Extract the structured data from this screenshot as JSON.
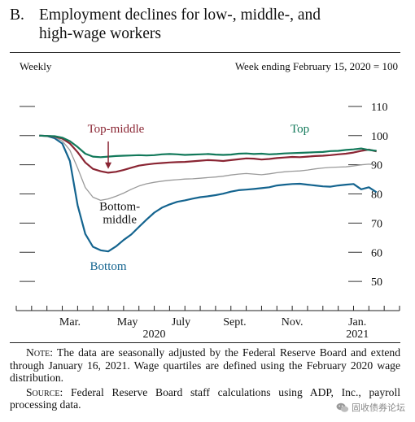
{
  "panel": {
    "letter": "B.",
    "title_line1": "Employment declines for low-, middle-, and",
    "title_line2": "high-wage workers"
  },
  "header": {
    "left": "Weekly",
    "right": "Week ending February 15, 2020 = 100"
  },
  "chart_data": {
    "type": "line",
    "ylim": [
      40,
      115
    ],
    "yticks": [
      50,
      60,
      70,
      80,
      90,
      100,
      110
    ],
    "xlim": [
      0,
      50
    ],
    "x_tick_positions": [
      0,
      2,
      4,
      6,
      8,
      10,
      12,
      14,
      16,
      18,
      20,
      22,
      24,
      26,
      28,
      30,
      32,
      34,
      36,
      38,
      40,
      42,
      44,
      46,
      48,
      50
    ],
    "x_labels": [
      {
        "text": "Mar.",
        "x": 7
      },
      {
        "text": "May",
        "x": 14.5
      },
      {
        "text": "July",
        "x": 21.5
      },
      {
        "text": "Sept.",
        "x": 28.5
      },
      {
        "text": "Nov.",
        "x": 36
      },
      {
        "text": "Jan.",
        "x": 44.5
      }
    ],
    "year_labels": [
      {
        "text": "2020",
        "x": 18
      },
      {
        "text": "2021",
        "x": 44.5
      }
    ],
    "series": [
      {
        "name": "Top",
        "color": "#12795a",
        "label": {
          "text": "Top",
          "x": 37,
          "y": 101
        },
        "x": [
          3,
          4,
          5,
          6,
          7,
          8,
          9,
          10,
          11,
          12,
          13,
          14,
          15,
          16,
          17,
          18,
          19,
          20,
          21,
          22,
          23,
          24,
          25,
          26,
          27,
          28,
          29,
          30,
          31,
          32,
          33,
          34,
          35,
          36,
          37,
          38,
          39,
          40,
          41,
          42,
          43,
          44,
          45,
          46,
          47
        ],
        "y": [
          100,
          99.9,
          99.8,
          99.3,
          98.1,
          96.1,
          93.8,
          92.8,
          92.6,
          92.8,
          93,
          93.1,
          93.2,
          93.3,
          93.2,
          93.3,
          93.6,
          93.7,
          93.6,
          93.4,
          93.5,
          93.6,
          93.7,
          93.5,
          93.4,
          93.5,
          93.8,
          93.9,
          93.7,
          93.8,
          93.6,
          93.7,
          93.9,
          94,
          94.1,
          94.2,
          94.3,
          94.4,
          94.7,
          94.8,
          95.1,
          95.3,
          95.6,
          95.1,
          94.8
        ]
      },
      {
        "name": "Top-middle",
        "color": "#8a2533",
        "label": {
          "text": "Top-middle",
          "x": 13,
          "y": 101
        },
        "arrow": {
          "x": 12,
          "y_from": 98,
          "y_to": 88.6
        },
        "x": [
          3,
          4,
          5,
          6,
          7,
          8,
          9,
          10,
          11,
          12,
          13,
          14,
          15,
          16,
          17,
          18,
          19,
          20,
          21,
          22,
          23,
          24,
          25,
          26,
          27,
          28,
          29,
          30,
          31,
          32,
          33,
          34,
          35,
          36,
          37,
          38,
          39,
          40,
          41,
          42,
          43,
          44,
          45,
          46,
          47
        ],
        "y": [
          100,
          99.9,
          99.7,
          99,
          97.3,
          94.3,
          90.8,
          88.6,
          87.8,
          87.3,
          87.6,
          88.2,
          89,
          89.7,
          90.1,
          90.4,
          90.6,
          90.8,
          90.9,
          91,
          91.2,
          91.4,
          91.6,
          91.5,
          91.3,
          91.6,
          91.9,
          92.2,
          92.1,
          91.8,
          92,
          92.3,
          92.5,
          92.7,
          92.6,
          92.8,
          93,
          93.1,
          93.3,
          93.6,
          93.8,
          94.2,
          94.8,
          95.2,
          94.6
        ]
      },
      {
        "name": "Bottom-middle",
        "color": "#9a9a9a",
        "label": {
          "text": "Bottom-",
          "text2": "middle",
          "x": 13.5,
          "y": 74.5
        },
        "x": [
          3,
          4,
          5,
          6,
          7,
          8,
          9,
          10,
          11,
          12,
          13,
          14,
          15,
          16,
          17,
          18,
          19,
          20,
          21,
          22,
          23,
          24,
          25,
          26,
          27,
          28,
          29,
          30,
          31,
          32,
          33,
          34,
          35,
          36,
          37,
          38,
          39,
          40,
          41,
          42,
          43,
          44,
          45,
          46,
          47
        ],
        "y": [
          100,
          99.9,
          99.5,
          98.2,
          95,
          88.9,
          82.2,
          78.9,
          77.8,
          78.3,
          79.2,
          80.3,
          81.6,
          82.7,
          83.5,
          84,
          84.4,
          84.7,
          84.9,
          85.1,
          85.2,
          85.4,
          85.6,
          85.8,
          86.1,
          86.5,
          86.8,
          87,
          86.8,
          86.6,
          86.9,
          87.3,
          87.6,
          87.8,
          87.9,
          88.2,
          88.6,
          88.9,
          89.1,
          89.2,
          89.3,
          89.6,
          90,
          90.2,
          90
        ]
      },
      {
        "name": "Bottom",
        "color": "#14648f",
        "label": {
          "text": "Bottom",
          "x": 12,
          "y": 54
        },
        "x": [
          3,
          4,
          5,
          6,
          7,
          8,
          9,
          10,
          11,
          12,
          13,
          14,
          15,
          16,
          17,
          18,
          19,
          20,
          21,
          22,
          23,
          24,
          25,
          26,
          27,
          28,
          29,
          30,
          31,
          32,
          33,
          34,
          35,
          36,
          37,
          38,
          39,
          40,
          41,
          42,
          43,
          44,
          45,
          46,
          47
        ],
        "y": [
          100,
          99.9,
          99.1,
          97.3,
          91.3,
          76.1,
          66.3,
          61.9,
          60.7,
          60.3,
          62,
          64.2,
          66.1,
          68.7,
          71.2,
          73.6,
          75.3,
          76.4,
          77.3,
          77.8,
          78.4,
          78.9,
          79.2,
          79.6,
          80.1,
          80.8,
          81.3,
          81.5,
          81.7,
          82,
          82.3,
          82.9,
          83.2,
          83.4,
          83.5,
          83.2,
          82.9,
          82.6,
          82.5,
          82.9,
          83.2,
          83.4,
          81.6,
          82.3,
          80.6
        ]
      }
    ]
  },
  "notes": {
    "note_label": "Note:",
    "note_text": "The data are seasonally adjusted by the Federal Reserve Board and extend through January 16, 2021. Wage quartiles are defined using the February 2020 wage distribution.",
    "source_label": "Source:",
    "source_text": "Federal Reserve Board staff calculations using ADP, Inc., payroll processing data."
  },
  "watermark": {
    "icon": "wechat-icon",
    "text": "固收债券论坛"
  }
}
